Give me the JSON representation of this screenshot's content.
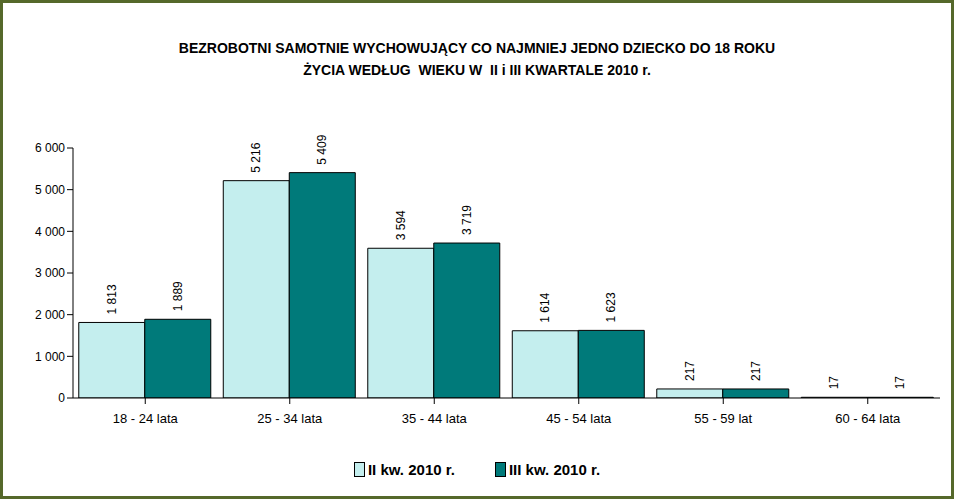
{
  "chart_data": {
    "type": "bar",
    "title": "BEZROBOTNI SAMOTNIE WYCHOWUJĄCY CO NAJMNIEJ JEDNO DZIECKO DO 18 ROKU\nŻYCIA WEDŁUG  WIEKU W  II i III KWARTALE 2010 r.",
    "categories": [
      "18 - 24 lata",
      "25 - 34 lata",
      "35 - 44 lata",
      "45 - 54 lata",
      "55 - 59 lat",
      "60 - 64 lata"
    ],
    "series": [
      {
        "name": "II kw. 2010 r.",
        "color": "#c4eeee",
        "values": [
          1813,
          5216,
          3594,
          1614,
          217,
          17
        ],
        "value_labels": [
          "1 813",
          "5 216",
          "3 594",
          "1 614",
          "217",
          "17"
        ]
      },
      {
        "name": "III kw. 2010 r.",
        "color": "#007a7a",
        "values": [
          1889,
          5409,
          3719,
          1623,
          217,
          17
        ],
        "value_labels": [
          "1 889",
          "5 409",
          "3 719",
          "1 623",
          "217",
          "17"
        ]
      }
    ],
    "ylim": [
      0,
      6000
    ],
    "yticks": [
      0,
      {
        "value": 1000,
        "label": "1 000"
      },
      {
        "value": 2000,
        "label": "2 000"
      },
      {
        "value": 3000,
        "label": "3 000"
      },
      {
        "value": 4000,
        "label": "4 000"
      },
      {
        "value": 5000,
        "label": "5 000"
      },
      {
        "value": 6000,
        "label": "6 000"
      }
    ],
    "grid": false,
    "legend": "bottom",
    "data_labels": true
  }
}
